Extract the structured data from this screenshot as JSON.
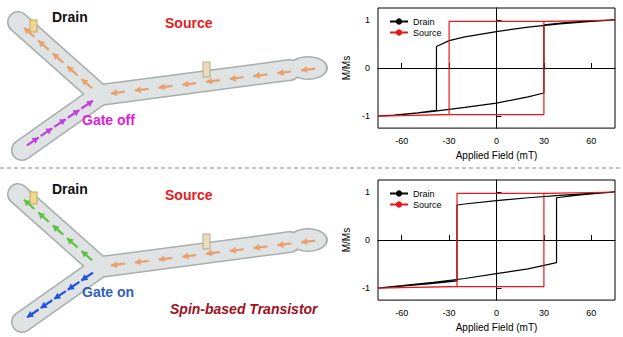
{
  "chart_data": [
    {
      "type": "line",
      "x_label": "Applied Field (mT)",
      "y_label": "M/Ms",
      "xlim": [
        -75,
        75
      ],
      "xticks": [
        -60,
        -30,
        0,
        30,
        60
      ],
      "ylim": [
        -1.25,
        1.25
      ],
      "yticks": [
        -1,
        0,
        1
      ],
      "grid": false,
      "legend": "upper left",
      "series": [
        {
          "name": "Drain",
          "color": "#000000",
          "x": [
            75,
            60,
            40,
            20,
            0,
            -20,
            -30,
            -38,
            -38,
            -50,
            -65,
            -75,
            -60,
            -40,
            -20,
            0,
            20,
            30,
            30,
            45,
            60,
            75
          ],
          "values": [
            1,
            0.97,
            0.92,
            0.85,
            0.76,
            0.65,
            0.57,
            0.45,
            -0.88,
            -0.93,
            -0.98,
            -1,
            -0.97,
            -0.9,
            -0.82,
            -0.73,
            -0.6,
            -0.52,
            0.9,
            0.95,
            0.98,
            1
          ]
        },
        {
          "name": "Source",
          "color": "#e8191e",
          "x": [
            75,
            60,
            35,
            -30,
            -30,
            -60,
            -75,
            -60,
            -35,
            30,
            30,
            60,
            75
          ],
          "values": [
            1,
            0.99,
            0.97,
            0.97,
            -0.97,
            -0.99,
            -1,
            -0.99,
            -0.97,
            -0.97,
            0.97,
            0.99,
            1
          ]
        }
      ]
    },
    {
      "type": "line",
      "x_label": "Applied Field (mT)",
      "y_label": "M/Ms",
      "xlim": [
        -75,
        75
      ],
      "xticks": [
        -60,
        -30,
        0,
        30,
        60
      ],
      "ylim": [
        -1.25,
        1.25
      ],
      "yticks": [
        -1,
        0,
        1
      ],
      "grid": false,
      "legend": "upper left",
      "series": [
        {
          "name": "Drain",
          "color": "#000000",
          "x": [
            75,
            60,
            40,
            20,
            0,
            -20,
            -25,
            -25,
            -40,
            -60,
            -75,
            -60,
            -40,
            -20,
            0,
            20,
            38,
            38,
            50,
            60,
            75
          ],
          "values": [
            1,
            0.97,
            0.93,
            0.88,
            0.82,
            0.75,
            0.73,
            -0.85,
            -0.9,
            -0.96,
            -1,
            -0.95,
            -0.88,
            -0.8,
            -0.7,
            -0.6,
            -0.47,
            0.88,
            0.93,
            0.96,
            1
          ]
        },
        {
          "name": "Source",
          "color": "#e8191e",
          "x": [
            75,
            60,
            35,
            -25,
            -25,
            -60,
            -75,
            -60,
            -30,
            30,
            30,
            60,
            75
          ],
          "values": [
            1,
            0.99,
            0.97,
            0.97,
            -0.97,
            -0.99,
            -1,
            -0.99,
            -0.97,
            -0.97,
            0.97,
            0.99,
            1
          ]
        }
      ]
    }
  ],
  "diagram": {
    "panels": [
      {
        "drain": {
          "text": "Drain",
          "color": "#111111"
        },
        "source": {
          "text": "Source",
          "color": "#e8191e"
        },
        "gate": {
          "text": "Gate off",
          "color": "#e020d8"
        },
        "drain_arrow_color": "#e8a070",
        "source_arrow_color": "#e8a070",
        "gate_arrow_color": "#c040e0"
      },
      {
        "drain": {
          "text": "Drain",
          "color": "#111111"
        },
        "source": {
          "text": "Source",
          "color": "#e8191e"
        },
        "gate": {
          "text": "Gate on",
          "color": "#3060c0"
        },
        "caption": {
          "text": "Spin-based Transistor",
          "color": "#a01020"
        },
        "drain_arrow_color": "#60c040",
        "source_arrow_color": "#e8a070",
        "gate_arrow_color": "#2050e0"
      }
    ]
  }
}
